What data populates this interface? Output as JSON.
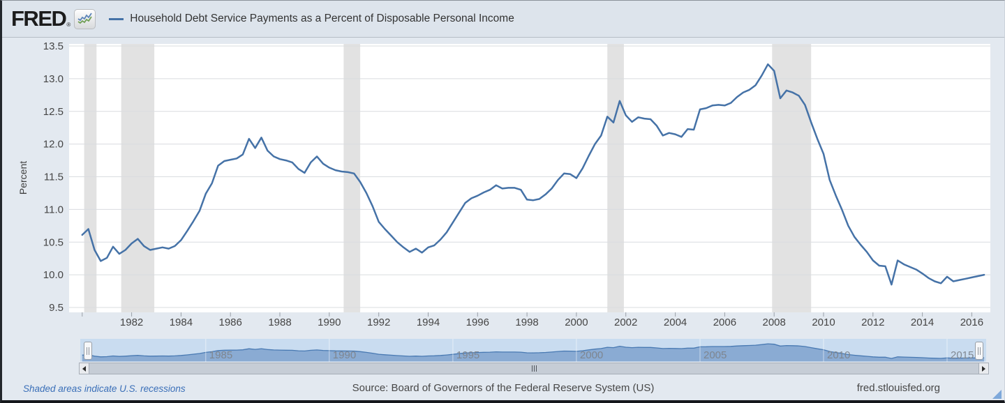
{
  "header": {
    "logo_text": "FRED",
    "logo_registered_mark": "®",
    "legend": {
      "series_label": "Household Debt Service Payments as a Percent of Disposable Personal Income"
    }
  },
  "chart_data": {
    "type": "line",
    "title": "Household Debt Service Payments as a Percent of Disposable Personal Income",
    "series_name": "Household Debt Service Payments as a Percent of Disposable Personal Income",
    "ylabel": "Percent",
    "frequency": "quarterly",
    "x_start": 1980.0,
    "x_step": 0.25,
    "values": [
      10.61,
      10.7,
      10.38,
      10.21,
      10.26,
      10.43,
      10.32,
      10.38,
      10.48,
      10.55,
      10.44,
      10.38,
      10.4,
      10.42,
      10.4,
      10.44,
      10.53,
      10.67,
      10.82,
      10.98,
      11.24,
      11.4,
      11.67,
      11.74,
      11.76,
      11.78,
      11.84,
      12.08,
      11.94,
      12.1,
      11.9,
      11.81,
      11.77,
      11.75,
      11.72,
      11.62,
      11.56,
      11.72,
      11.81,
      11.7,
      11.64,
      11.6,
      11.58,
      11.57,
      11.55,
      11.42,
      11.25,
      11.05,
      10.81,
      10.7,
      10.6,
      10.5,
      10.42,
      10.35,
      10.4,
      10.34,
      10.42,
      10.45,
      10.54,
      10.65,
      10.8,
      10.95,
      11.1,
      11.17,
      11.21,
      11.26,
      11.3,
      11.37,
      11.32,
      11.33,
      11.33,
      11.3,
      11.15,
      11.14,
      11.16,
      11.23,
      11.32,
      11.45,
      11.55,
      11.54,
      11.48,
      11.63,
      11.82,
      12.0,
      12.13,
      12.42,
      12.33,
      12.66,
      12.44,
      12.34,
      12.41,
      12.39,
      12.38,
      12.28,
      12.13,
      12.17,
      12.15,
      12.11,
      12.23,
      12.22,
      12.53,
      12.55,
      12.59,
      12.6,
      12.59,
      12.63,
      12.72,
      12.79,
      12.83,
      12.9,
      13.05,
      13.22,
      13.12,
      12.7,
      12.82,
      12.79,
      12.74,
      12.6,
      12.33,
      12.08,
      11.85,
      11.45,
      11.21,
      10.99,
      10.75,
      10.58,
      10.46,
      10.35,
      10.22,
      10.14,
      10.13,
      9.85,
      10.22,
      10.16,
      10.12,
      10.08,
      10.02,
      9.95,
      9.9,
      9.87,
      9.97,
      9.9,
      9.92,
      9.94,
      9.96,
      9.98,
      10.0
    ],
    "ylim": [
      9.5,
      13.5
    ],
    "xlim": [
      1979.47,
      2016.75
    ],
    "y_ticks": [
      13.5,
      13.0,
      12.5,
      12.0,
      11.5,
      11.0,
      10.5,
      10.0,
      9.5
    ],
    "x_tick_marks": [
      1980,
      1982,
      1984,
      1986,
      1988,
      1990,
      1992,
      1994,
      1996,
      1998,
      2000,
      2002,
      2004,
      2006,
      2008,
      2010,
      2012,
      2014,
      2016
    ],
    "x_tick_labels": [
      1982,
      1984,
      1986,
      1988,
      1990,
      1992,
      1994,
      1996,
      1998,
      2000,
      2002,
      2004,
      2006,
      2008,
      2010,
      2012,
      2014,
      2016
    ],
    "recessions": [
      [
        1980.08,
        1980.58
      ],
      [
        1981.58,
        1982.92
      ],
      [
        1990.58,
        1991.25
      ],
      [
        2001.25,
        2001.92
      ],
      [
        2007.92,
        2009.5
      ]
    ],
    "grid": "horizontal",
    "legend_position": "top",
    "colors": {
      "line": "#4572a7",
      "recession_band": "#e2e2e2",
      "plot_bg": "#ffffff",
      "grid": "#d9dcdf",
      "page_bg": "#e3e9f0",
      "header_bg": "#dde4ec",
      "axis_text": "#454545",
      "tick_mark": "#9aa0a8"
    }
  },
  "navigator": {
    "year_labels": [
      1985,
      1990,
      1995,
      2000,
      2005,
      2010,
      2015
    ],
    "ylim": [
      9.3,
      13.8
    ],
    "colors": {
      "bg": "#c9dcf0",
      "fill": "#8aabd3",
      "line": "#4879b2",
      "label": "#7e848c",
      "gridline": "#ffffff"
    }
  },
  "footer": {
    "recession_note": "Shaded areas indicate U.S. recessions",
    "source": "Source: Board of Governors of the Federal Reserve System (US)",
    "site": "fred.stlouisfed.org"
  }
}
